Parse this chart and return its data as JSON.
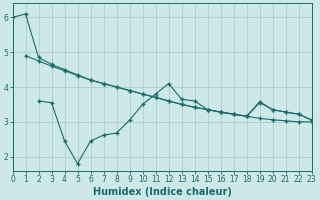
{
  "line1_x": [
    0,
    1,
    2,
    3,
    4,
    5,
    6,
    7,
    8,
    9,
    10,
    11,
    12,
    13,
    14,
    15,
    16,
    17,
    18,
    19,
    20,
    21,
    22,
    23
  ],
  "line1_y": [
    6.0,
    6.1,
    4.85,
    4.65,
    4.5,
    4.35,
    4.2,
    4.1,
    4.0,
    3.9,
    3.8,
    3.7,
    3.6,
    3.5,
    3.42,
    3.35,
    3.28,
    3.22,
    3.16,
    3.1,
    3.06,
    3.03,
    3.0,
    3.0
  ],
  "line2_x": [
    1,
    2,
    3,
    4,
    5,
    6,
    7,
    8,
    9,
    10,
    11,
    12,
    13,
    14,
    15,
    16,
    17,
    18,
    19,
    20,
    21,
    22,
    23
  ],
  "line2_y": [
    4.9,
    4.75,
    4.6,
    4.47,
    4.33,
    4.2,
    4.1,
    4.0,
    3.9,
    3.8,
    3.7,
    3.6,
    3.5,
    3.42,
    3.35,
    3.28,
    3.22,
    3.16,
    3.58,
    3.35,
    3.28,
    3.22,
    3.05
  ],
  "line3_x": [
    2,
    3,
    4,
    5,
    6,
    7,
    8,
    9,
    10,
    11,
    12,
    13,
    14,
    15,
    16,
    17,
    18,
    19,
    20,
    21,
    22,
    23
  ],
  "line3_y": [
    3.6,
    3.55,
    2.45,
    1.8,
    2.45,
    2.62,
    2.68,
    3.05,
    3.5,
    3.8,
    4.1,
    3.65,
    3.6,
    3.35,
    3.28,
    3.22,
    3.16,
    3.55,
    3.35,
    3.28,
    3.22,
    3.05
  ],
  "line_color": "#1a6b6b",
  "bg_color": "#cde8e8",
  "grid_color": "#b0cccc",
  "xlabel": "Humidex (Indice chaleur)",
  "xlim": [
    0,
    23
  ],
  "ylim": [
    1.6,
    6.4
  ],
  "yticks": [
    2,
    3,
    4,
    5,
    6
  ],
  "xticks": [
    0,
    1,
    2,
    3,
    4,
    5,
    6,
    7,
    8,
    9,
    10,
    11,
    12,
    13,
    14,
    15,
    16,
    17,
    18,
    19,
    20,
    21,
    22,
    23
  ],
  "marker": "+",
  "markersize": 3.5,
  "linewidth": 0.8,
  "xlabel_fontsize": 7,
  "tick_fontsize": 5.5
}
